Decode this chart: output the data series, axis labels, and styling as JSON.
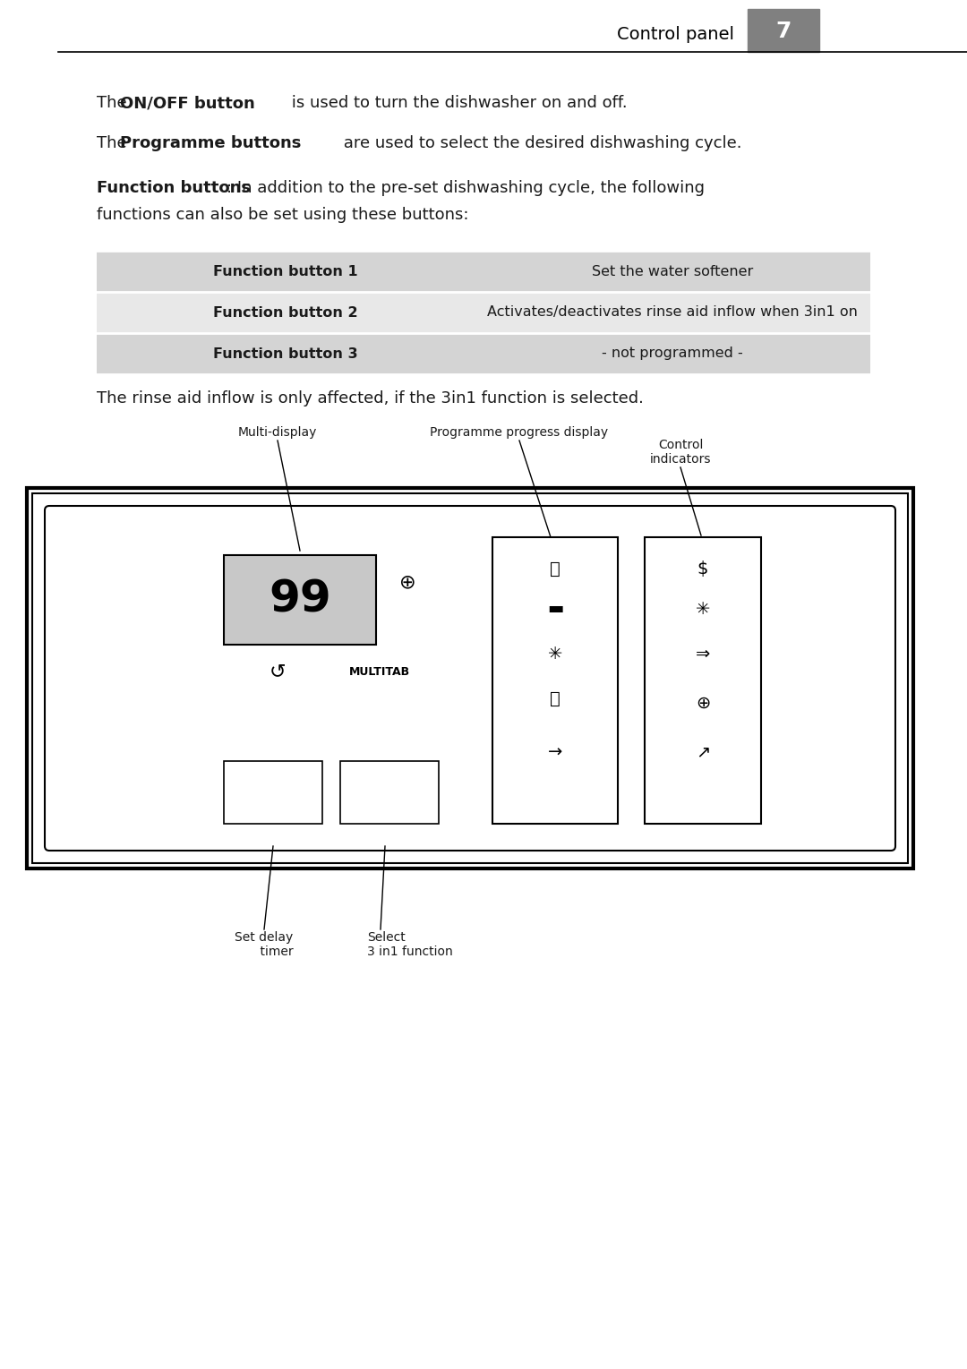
{
  "bg_color": "#ffffff",
  "header_text": "Control panel",
  "header_number": "7",
  "header_bg": "#808080",
  "header_text_color": "#ffffff",
  "para1_normal": "The ",
  "para1_bold": "ON/OFF button",
  "para1_rest": " is used to turn the dishwasher on and off.",
  "para2_normal": "The ",
  "para2_bold": "Programme buttons",
  "para2_rest": " are used to select the desired dishwashing cycle.",
  "para3_bold": "Function buttons",
  "para3_rest": ": In addition to the pre-set dishwashing cycle, the following\nfunctions can also be set using these buttons:",
  "table_rows": [
    [
      "Function button 1",
      "Set the water softener"
    ],
    [
      "Function button 2",
      "Activates/deactivates rinse aid inflow when 3in1 on"
    ],
    [
      "Function button 3",
      "- not programmed -"
    ]
  ],
  "table_row_colors": [
    "#d4d4d4",
    "#e8e8e8",
    "#d4d4d4"
  ],
  "rinse_text": "The rinse aid inflow is only affected, if the 3in1 function is selected.",
  "label_multidisplay": "Multi-display",
  "label_programme": "Programme progress display",
  "label_control": "Control\nindicators",
  "label_setdelay": "Set delay\n    timer",
  "label_select": "Select\n3 in1 function",
  "text_color": "#1a1a1a",
  "table_text_color": "#1a1a1a",
  "font_size_body": 13,
  "font_size_header": 13,
  "font_size_table": 11.5,
  "font_size_label": 10
}
